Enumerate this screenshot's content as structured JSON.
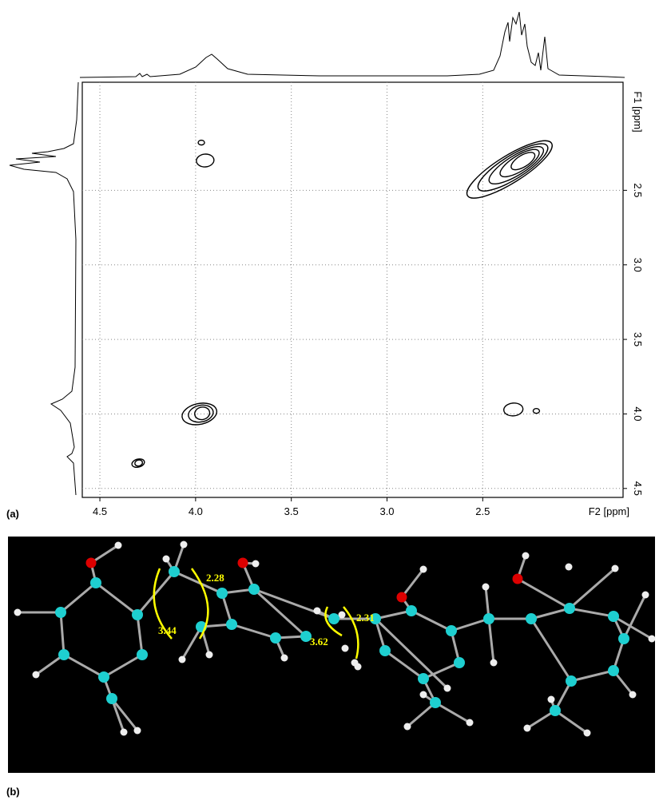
{
  "panel_labels": [
    "(a)",
    "(b)"
  ],
  "chart_data": {
    "type": "contour",
    "x_label": "F2 [ppm]",
    "y_label": "F1 [ppm]",
    "xlim": [
      4.592,
      1.767
    ],
    "ylim": [
      1.775,
      4.56
    ],
    "xticks": [
      {
        "value": 4.5,
        "label": "4.5"
      },
      {
        "value": 4.0,
        "label": "4.0"
      },
      {
        "value": 3.5,
        "label": "3.5"
      },
      {
        "value": 3.0,
        "label": "3.0"
      },
      {
        "value": 2.5,
        "label": "2.5"
      }
    ],
    "yticks": [
      {
        "value": 2.5,
        "label": "2.5"
      },
      {
        "value": 3.0,
        "label": "3.0"
      },
      {
        "value": 3.5,
        "label": "3.5"
      },
      {
        "value": 4.0,
        "label": "4.0"
      },
      {
        "value": 4.5,
        "label": "4.5"
      }
    ],
    "grid": true,
    "color": "#000000",
    "peaks": {
      "x": [
        4.3,
        3.98,
        3.95,
        3.97,
        2.36,
        2.34,
        2.22
      ],
      "y": [
        4.33,
        4.0,
        2.3,
        2.18,
        2.36,
        3.97,
        3.98
      ]
    }
  },
  "molecule": {
    "distances": [
      "2.28",
      "3.44",
      "3.62",
      "2.31"
    ]
  }
}
